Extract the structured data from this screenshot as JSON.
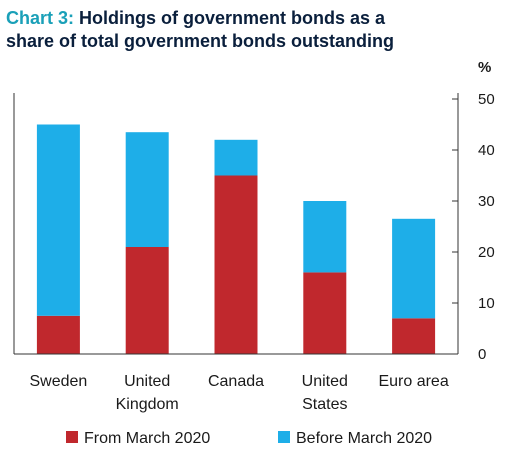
{
  "chart_data": {
    "type": "bar",
    "stacked": true,
    "title_prefix": "Chart 3:",
    "title_line1": "Holdings of government bonds as a",
    "title_line2": "share of total government bonds outstanding",
    "unit_label": "%",
    "categories": [
      [
        "Sweden"
      ],
      [
        "United",
        "Kingdom"
      ],
      [
        "Canada"
      ],
      [
        "United",
        "States"
      ],
      [
        "Euro area"
      ]
    ],
    "series": [
      {
        "name": "From March 2020",
        "color": "#c0282d",
        "values": [
          7.5,
          21,
          35,
          16,
          7
        ]
      },
      {
        "name": "Before March 2020",
        "color": "#1eaee8",
        "values": [
          37.5,
          22.5,
          7,
          14,
          19.5
        ]
      }
    ],
    "ylim": [
      0,
      50
    ],
    "yticks": [
      0,
      10,
      20,
      30,
      40,
      50
    ],
    "y_axis_side": "right",
    "grid": false,
    "legend_position": "bottom"
  }
}
